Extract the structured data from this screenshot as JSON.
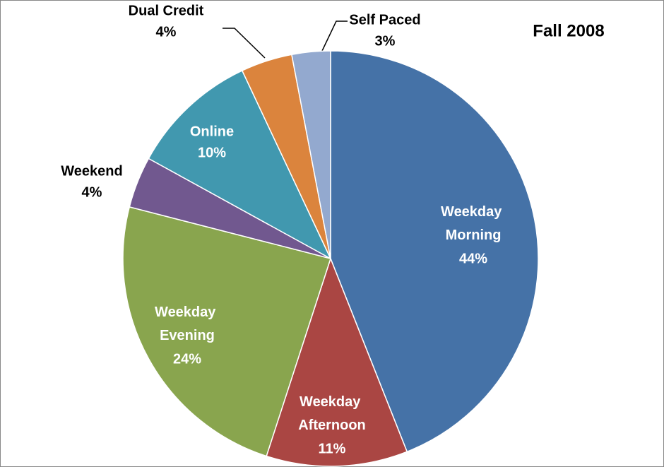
{
  "chart_data": {
    "type": "pie",
    "title": "Fall 2008",
    "categories": [
      "Weekday Morning",
      "Weekday Afternoon",
      "Weekday Evening",
      "Weekend",
      "Online",
      "Dual Credit",
      "Self Paced"
    ],
    "values": [
      44,
      11,
      24,
      4,
      10,
      4,
      3
    ],
    "value_labels": [
      "44%",
      "11%",
      "24%",
      "4%",
      "10%",
      "4%",
      "3%"
    ],
    "colors": [
      "#4572a7",
      "#aa4643",
      "#89a54e",
      "#71588f",
      "#4198af",
      "#db843d",
      "#93a9cf"
    ]
  }
}
